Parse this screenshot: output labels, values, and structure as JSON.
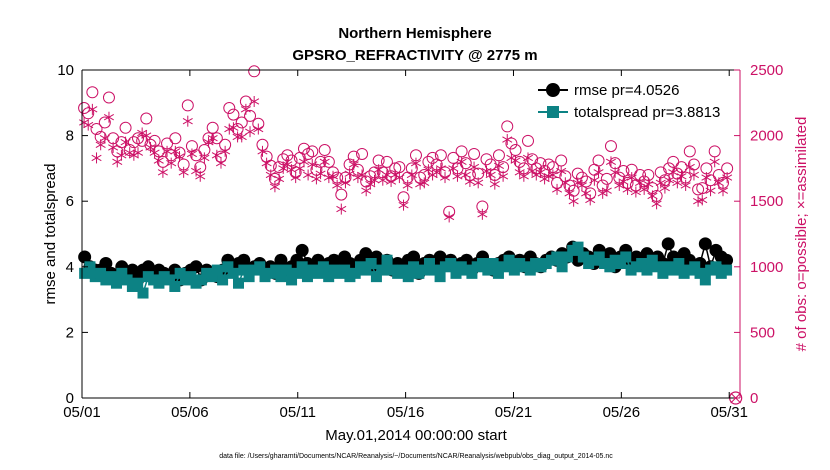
{
  "chart_data": {
    "type": "line",
    "title": "Northern Hemisphere",
    "subtitle": "GPSRO_REFRACTIVITY @ 2775 m",
    "xlabel": "May.01,2014 00:00:00 start",
    "ylabel_left": "rmse and totalspread",
    "ylabel_right": "# of obs: o=possible; ×=assimilated",
    "footnote": "data file: /Users/gharamti/Documents/NCAR/Reanalysis/~/Documents/NCAR/Reanalysis/webpub/obs_diag_output_2014-05.nc",
    "x_tick_labels": [
      "05/01",
      "05/06",
      "05/11",
      "05/16",
      "05/21",
      "05/26",
      "05/31"
    ],
    "x_tick_days": [
      1,
      6,
      11,
      16,
      21,
      26,
      31
    ],
    "xlim_days": [
      1,
      31.5
    ],
    "ylim_left": [
      0,
      10
    ],
    "yticks_left": [
      "0",
      "2",
      "4",
      "6",
      "8",
      "10"
    ],
    "ylim_right": [
      0,
      2500
    ],
    "yticks_right": [
      "0",
      "500",
      "1000",
      "1500",
      "2000",
      "2500"
    ],
    "colors": {
      "rmse": "#000000",
      "spread": "#0c8284",
      "obs": "#cc1166"
    },
    "series": [
      {
        "name": "rmse",
        "legend": "rmse pr=4.0526",
        "axis": "left",
        "values": [
          4.3,
          4.0,
          3.9,
          3.9,
          4.1,
          3.8,
          3.7,
          4.0,
          3.8,
          3.9,
          3.6,
          3.9,
          4.0,
          3.7,
          3.9,
          3.8,
          3.7,
          3.9,
          3.6,
          3.8,
          3.9,
          4.0,
          3.6,
          3.9,
          3.8,
          3.7,
          3.9,
          4.2,
          4.0,
          4.1,
          4.2,
          3.9,
          4.0,
          4.1,
          3.9,
          4.0,
          3.8,
          4.2,
          3.9,
          4.0,
          4.2,
          4.5,
          4.1,
          4.0,
          4.2,
          3.9,
          4.1,
          4.2,
          4.0,
          4.3,
          4.1,
          4.0,
          4.2,
          4.4,
          4.0,
          4.3,
          4.1,
          4.2,
          3.9,
          4.1,
          4.0,
          4.2,
          4.3,
          3.8,
          4.1,
          4.2,
          4.0,
          4.3,
          4.1,
          4.2,
          4.0,
          4.1,
          4.2,
          3.9,
          4.1,
          4.3,
          4.0,
          3.9,
          4.1,
          4.2,
          4.3,
          4.0,
          4.2,
          4.0,
          4.3,
          4.1,
          4.0,
          4.2,
          4.3,
          4.2,
          4.4,
          4.3,
          4.6,
          4.2,
          4.4,
          4.3,
          4.1,
          4.5,
          4.3,
          4.4,
          4.0,
          4.3,
          4.5,
          4.2,
          4.3,
          4.1,
          4.4,
          4.2,
          4.3,
          4.1,
          4.7,
          4.3,
          4.1,
          4.4,
          4.2,
          4.0,
          4.1,
          4.7,
          4.0,
          4.5,
          4.3,
          4.2
        ]
      },
      {
        "name": "totalspread",
        "legend": "totalspread pr=3.8813",
        "axis": "left",
        "values": [
          3.8,
          4.0,
          3.7,
          3.8,
          3.6,
          3.7,
          3.5,
          3.8,
          3.6,
          3.4,
          3.5,
          3.2,
          3.7,
          3.6,
          3.5,
          3.7,
          3.6,
          3.4,
          3.8,
          3.6,
          3.7,
          3.5,
          3.6,
          3.8,
          3.7,
          3.9,
          3.6,
          4.0,
          3.8,
          3.5,
          3.9,
          3.7,
          3.9,
          4.0,
          3.7,
          3.8,
          3.9,
          3.7,
          3.9,
          3.6,
          3.8,
          4.0,
          3.7,
          3.9,
          3.8,
          4.0,
          3.7,
          3.9,
          3.8,
          3.9,
          3.7,
          3.8,
          4.0,
          3.9,
          4.1,
          3.7,
          3.9,
          4.2,
          3.9,
          3.8,
          3.9,
          3.7,
          4.0,
          3.8,
          3.9,
          4.1,
          3.9,
          3.7,
          4.0,
          4.1,
          3.8,
          4.0,
          3.9,
          3.8,
          4.0,
          4.1,
          3.9,
          4.1,
          3.8,
          4.0,
          4.2,
          3.9,
          4.1,
          4.0,
          3.9,
          4.1,
          4.0,
          4.1,
          4.2,
          4.3,
          4.0,
          4.3,
          4.5,
          4.6,
          4.3,
          4.1,
          4.2,
          4.3,
          4.1,
          4.0,
          4.2,
          4.1,
          4.3,
          3.9,
          4.0,
          4.1,
          3.9,
          4.2,
          4.0,
          3.8,
          4.0,
          3.9,
          4.1,
          3.8,
          3.9,
          4.0,
          3.8,
          3.6,
          3.9,
          4.0,
          3.8,
          3.9
        ]
      },
      {
        "name": "possible",
        "legend": "o=possible",
        "axis": "right",
        "marker": "circle",
        "values": [
          2210,
          2170,
          2330,
          2050,
          1990,
          2100,
          2290,
          1980,
          1880,
          1950,
          2060,
          1890,
          1950,
          1980,
          1960,
          2130,
          1930,
          1960,
          1880,
          1800,
          1940,
          1850,
          1980,
          1870,
          1780,
          2230,
          1920,
          1850,
          1760,
          1890,
          1980,
          2060,
          1980,
          1840,
          1930,
          2210,
          2160,
          2050,
          2100,
          2260,
          2150,
          2490,
          2090,
          1930,
          1840,
          1770,
          1670,
          1760,
          1820,
          1850,
          1810,
          1720,
          1830,
          1900,
          1860,
          1880,
          1740,
          1800,
          1890,
          1800,
          1720,
          1680,
          1550,
          1680,
          1780,
          1840,
          1740,
          1860,
          1650,
          1690,
          1720,
          1810,
          1720,
          1800,
          1690,
          1750,
          1760,
          1530,
          1680,
          1750,
          1850,
          1680,
          1700,
          1800,
          1830,
          1780,
          1850,
          1720,
          1420,
          1830,
          1750,
          1880,
          1790,
          1700,
          1860,
          1710,
          1460,
          1820,
          1780,
          1700,
          1850,
          1760,
          2070,
          1940,
          1890,
          1800,
          1750,
          1960,
          1820,
          1750,
          1790,
          1730,
          1780,
          1760,
          1640,
          1810,
          1690,
          1620,
          1580,
          1710,
          1680,
          1650,
          1560,
          1740,
          1810,
          1620,
          1670,
          1920,
          1790,
          1680,
          1730,
          1640,
          1740,
          1620,
          1700,
          1650,
          1700,
          1600,
          1540,
          1720,
          1660,
          1750,
          1800,
          1710,
          1760,
          1680,
          1880,
          1780,
          1590,
          1600,
          1750,
          1660,
          1880,
          1700,
          1640,
          1750
        ]
      },
      {
        "name": "assimilated",
        "legend": "×=assimilated",
        "axis": "right",
        "marker": "asterisk",
        "values": [
          2100,
          2080,
          2200,
          1830,
          1930,
          1980,
          2140,
          1910,
          1800,
          1850,
          1950,
          1870,
          1850,
          1870,
          2020,
          2000,
          1910,
          1870,
          1810,
          1720,
          1880,
          1790,
          1880,
          1840,
          1720,
          2110,
          1860,
          1730,
          1690,
          1830,
          1950,
          1980,
          1850,
          1790,
          1880,
          2050,
          2060,
          1990,
          1990,
          2200,
          2030,
          2260,
          2050,
          1880,
          1790,
          1700,
          1610,
          1670,
          1750,
          1780,
          1740,
          1680,
          1750,
          1800,
          1700,
          1780,
          1670,
          1710,
          1800,
          1680,
          1690,
          1620,
          1440,
          1640,
          1710,
          1780,
          1680,
          1700,
          1580,
          1630,
          1660,
          1740,
          1660,
          1700,
          1650,
          1700,
          1680,
          1470,
          1620,
          1700,
          1790,
          1630,
          1640,
          1740,
          1700,
          1720,
          1750,
          1680,
          1380,
          1750,
          1690,
          1800,
          1700,
          1650,
          1760,
          1640,
          1400,
          1730,
          1700,
          1630,
          1770,
          1690,
          1970,
          1830,
          1810,
          1720,
          1690,
          1830,
          1730,
          1700,
          1720,
          1670,
          1690,
          1700,
          1590,
          1730,
          1640,
          1560,
          1500,
          1640,
          1620,
          1560,
          1510,
          1660,
          1720,
          1560,
          1580,
          1800,
          1720,
          1620,
          1650,
          1590,
          1680,
          1570,
          1640,
          1590,
          1630,
          1540,
          1480,
          1640,
          1600,
          1660,
          1720,
          1640,
          1690,
          1620,
          1760,
          1700,
          1500,
          1510,
          1680,
          1580,
          1800,
          1640,
          1580,
          1680
        ]
      }
    ],
    "legend_position": "top-right"
  }
}
